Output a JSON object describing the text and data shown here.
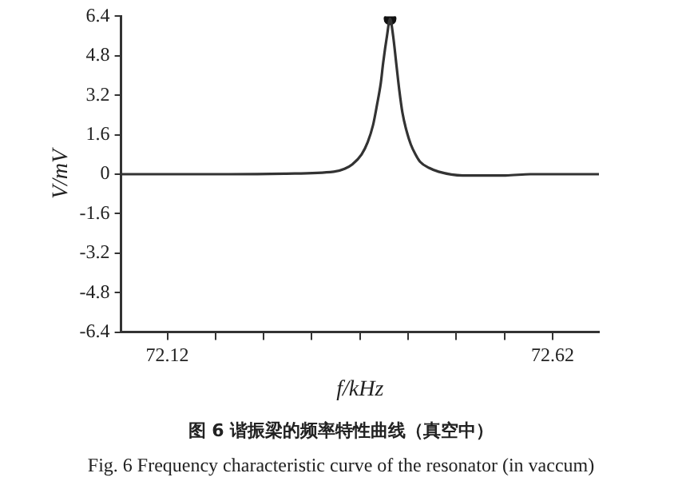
{
  "chart_data": {
    "type": "line",
    "title": "图 6 谐振梁的频率特性曲线（真空中）",
    "subtitle": "Fig. 6 Frequency characteristic curve of the resonator (in vaccum)",
    "xlabel": "f/kHz",
    "ylabel": "V/mV",
    "series": [
      {
        "color": "#333333",
        "marker": "none",
        "x": [
          72.06,
          72.2,
          72.272,
          72.336,
          72.35,
          72.36,
          72.372,
          72.38,
          72.387,
          72.392,
          72.397,
          72.4,
          72.405,
          72.409,
          72.413,
          72.417,
          72.421,
          72.425,
          72.43,
          72.436,
          72.442,
          72.448,
          72.46,
          72.472,
          72.503,
          72.559,
          72.591,
          72.68
        ],
        "values": [
          0,
          0,
          0.02,
          0.1,
          0.22,
          0.4,
          0.8,
          1.3,
          2,
          2.8,
          3.7,
          4.5,
          5.6,
          6.3,
          5.6,
          4.5,
          3.4,
          2.5,
          1.8,
          1.2,
          0.8,
          0.5,
          0.25,
          0.1,
          -0.05,
          -0.05,
          0,
          0
        ]
      },
      {
        "type": "scatter",
        "color": "#111111",
        "marker": "circle",
        "x": [
          72.409
        ],
        "values": [
          6.3
        ]
      }
    ],
    "xlim": [
      72.06,
      72.68
    ],
    "xticks": [
      72.12,
      {
        "value": 72.1825,
        "label": null
      },
      {
        "value": 72.245,
        "label": null
      },
      {
        "value": 72.3075,
        "label": null
      },
      {
        "value": 72.37,
        "label": null
      },
      {
        "value": 72.4325,
        "label": null
      },
      {
        "value": 72.495,
        "label": null
      },
      {
        "value": 72.5575,
        "label": null
      },
      72.62
    ],
    "ylim": [
      -6.4,
      6.4
    ],
    "yticks": [
      -6.4,
      -4.8,
      -3.2,
      -1.6,
      0,
      1.6,
      3.2,
      4.8,
      6.4
    ],
    "grid": false,
    "legend": false
  }
}
